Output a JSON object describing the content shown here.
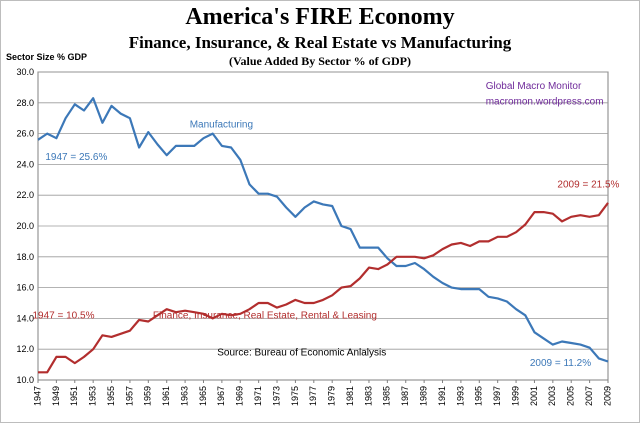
{
  "title": "America's FIRE Economy",
  "subtitle": "Finance, Insurance, & Real Estate vs Manufacturing",
  "note": "(Value Added By Sector % of GDP)",
  "chart_data": {
    "type": "line",
    "title": "America's FIRE Economy",
    "subtitle": "Finance, Insurance, & Real Estate vs Manufacturing",
    "ylabel": "Sector Size % GDP",
    "xlabel": "",
    "ylim": [
      10.0,
      30.0
    ],
    "yticks": [
      "10.0",
      "12.0",
      "14.0",
      "16.0",
      "18.0",
      "20.0",
      "22.0",
      "24.0",
      "26.0",
      "28.0",
      "30.0"
    ],
    "xlim": [
      1947,
      2009
    ],
    "xticks": [
      "1947",
      "1949",
      "1951",
      "1953",
      "1955",
      "1957",
      "1959",
      "1961",
      "1963",
      "1965",
      "1967",
      "1969",
      "1971",
      "1973",
      "1975",
      "1977",
      "1979",
      "1981",
      "1983",
      "1985",
      "1987",
      "1989",
      "1991",
      "1993",
      "1995",
      "1997",
      "1999",
      "2001",
      "2003",
      "2005",
      "2007",
      "2009"
    ],
    "grid": true,
    "legend": "none",
    "x": [
      1947,
      1948,
      1949,
      1950,
      1951,
      1952,
      1953,
      1954,
      1955,
      1956,
      1957,
      1958,
      1959,
      1960,
      1961,
      1962,
      1963,
      1964,
      1965,
      1966,
      1967,
      1968,
      1969,
      1970,
      1971,
      1972,
      1973,
      1974,
      1975,
      1976,
      1977,
      1978,
      1979,
      1980,
      1981,
      1982,
      1983,
      1984,
      1985,
      1986,
      1987,
      1988,
      1989,
      1990,
      1991,
      1992,
      1993,
      1994,
      1995,
      1996,
      1997,
      1998,
      1999,
      2000,
      2001,
      2002,
      2003,
      2004,
      2005,
      2006,
      2007,
      2008,
      2009
    ],
    "series": [
      {
        "name": "Manufacturing",
        "color": "#3c78b8",
        "values": [
          25.6,
          26.0,
          25.7,
          27.0,
          27.9,
          27.5,
          28.3,
          26.7,
          27.8,
          27.3,
          27.0,
          25.1,
          26.1,
          25.3,
          24.6,
          25.2,
          25.2,
          25.2,
          25.7,
          26.0,
          25.2,
          25.1,
          24.3,
          22.7,
          22.1,
          22.1,
          21.9,
          21.2,
          20.6,
          21.2,
          21.6,
          21.4,
          21.3,
          20.0,
          19.8,
          18.6,
          18.6,
          18.6,
          17.9,
          17.4,
          17.4,
          17.6,
          17.2,
          16.7,
          16.3,
          16.0,
          15.9,
          15.9,
          15.9,
          15.4,
          15.3,
          15.1,
          14.6,
          14.2,
          13.1,
          12.7,
          12.3,
          12.5,
          12.4,
          12.3,
          12.1,
          11.4,
          11.2
        ]
      },
      {
        "name": "Finance, Insurance, Real Estate, Rental & Leasing",
        "color": "#b22e2e",
        "values": [
          10.5,
          10.5,
          11.5,
          11.5,
          11.1,
          11.5,
          12.0,
          12.9,
          12.8,
          13.0,
          13.2,
          13.9,
          13.8,
          14.2,
          14.6,
          14.4,
          14.5,
          14.4,
          14.3,
          14.0,
          14.3,
          14.2,
          14.3,
          14.6,
          15.0,
          15.0,
          14.7,
          14.9,
          15.2,
          15.0,
          15.0,
          15.2,
          15.5,
          16.0,
          16.1,
          16.6,
          17.3,
          17.2,
          17.5,
          18.0,
          18.0,
          18.0,
          17.9,
          18.1,
          18.5,
          18.8,
          18.9,
          18.7,
          19.0,
          19.0,
          19.3,
          19.3,
          19.6,
          20.1,
          20.9,
          20.9,
          20.8,
          20.3,
          20.6,
          20.7,
          20.6,
          20.7,
          21.5
        ]
      }
    ],
    "annotations": [
      {
        "text": "Global Macro Monitor",
        "color": "#6f2a9a",
        "x": 1995.7,
        "y": 28.9
      },
      {
        "text": "macromon.wordpress.com",
        "color": "#6f2a9a",
        "x": 1995.7,
        "y": 27.9
      },
      {
        "text": "Manufacturing",
        "color": "#3c78b8",
        "x": 1963.5,
        "y": 26.4
      },
      {
        "text": "1947 = 25.6%",
        "color": "#3c78b8",
        "x": 1947.8,
        "y": 24.3
      },
      {
        "text": "2009 = 21.5%",
        "color": "#b22e2e",
        "x": 2003.5,
        "y": 22.5
      },
      {
        "text": "1947 = 10.5%",
        "color": "#b22e2e",
        "x": 1946.4,
        "y": 14.0
      },
      {
        "text": "Finance, Insurance, Real Estate, Rental  & Leasing",
        "color": "#b22e2e",
        "x": 1959.5,
        "y": 14.0
      },
      {
        "text": "Source:  Bureau of Economic Anlalysis",
        "color": "#000000",
        "x": 1966.5,
        "y": 11.6
      },
      {
        "text": "2009 = 11.2%",
        "color": "#3c78b8",
        "x": 2000.5,
        "y": 10.9
      }
    ]
  }
}
